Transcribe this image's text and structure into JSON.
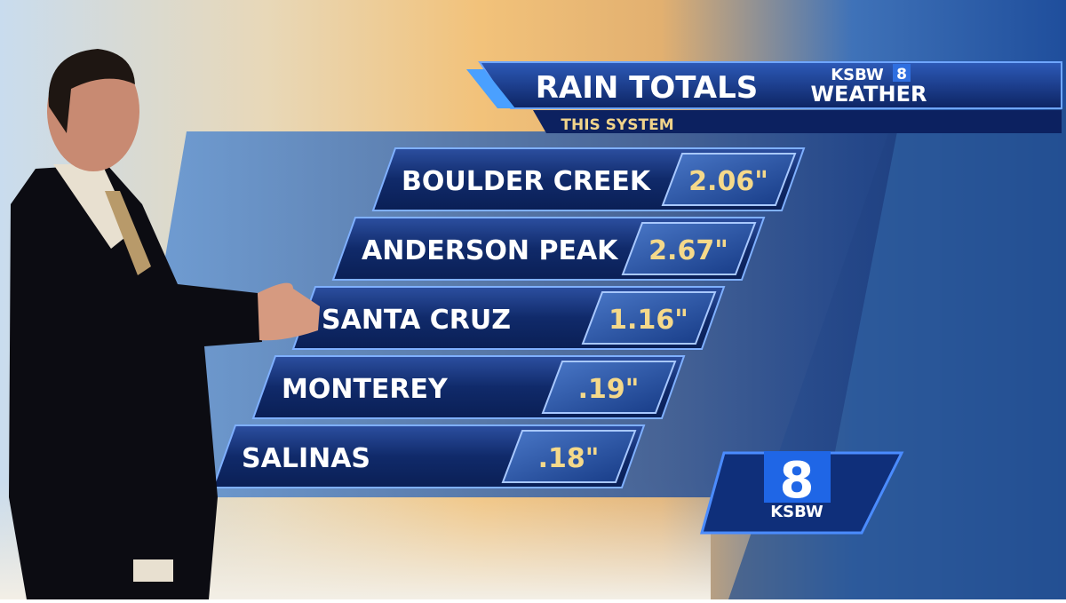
{
  "header": {
    "title": "RAIN TOTALS",
    "subtitle": "THIS SYSTEM",
    "logo_station": "KSBW",
    "logo_channel": "8",
    "logo_weather": "WEATHER"
  },
  "table": {
    "rows": [
      [
        "BOULDER CREEK",
        "2.06\""
      ],
      [
        "ANDERSON PEAK",
        "2.67\""
      ],
      [
        "SANTA CRUZ",
        "1.16\""
      ],
      [
        "MONTEREY",
        ".19\""
      ],
      [
        "SALINAS",
        ".18\""
      ]
    ]
  },
  "bug": {
    "channel": "8",
    "station": "KSBW"
  }
}
